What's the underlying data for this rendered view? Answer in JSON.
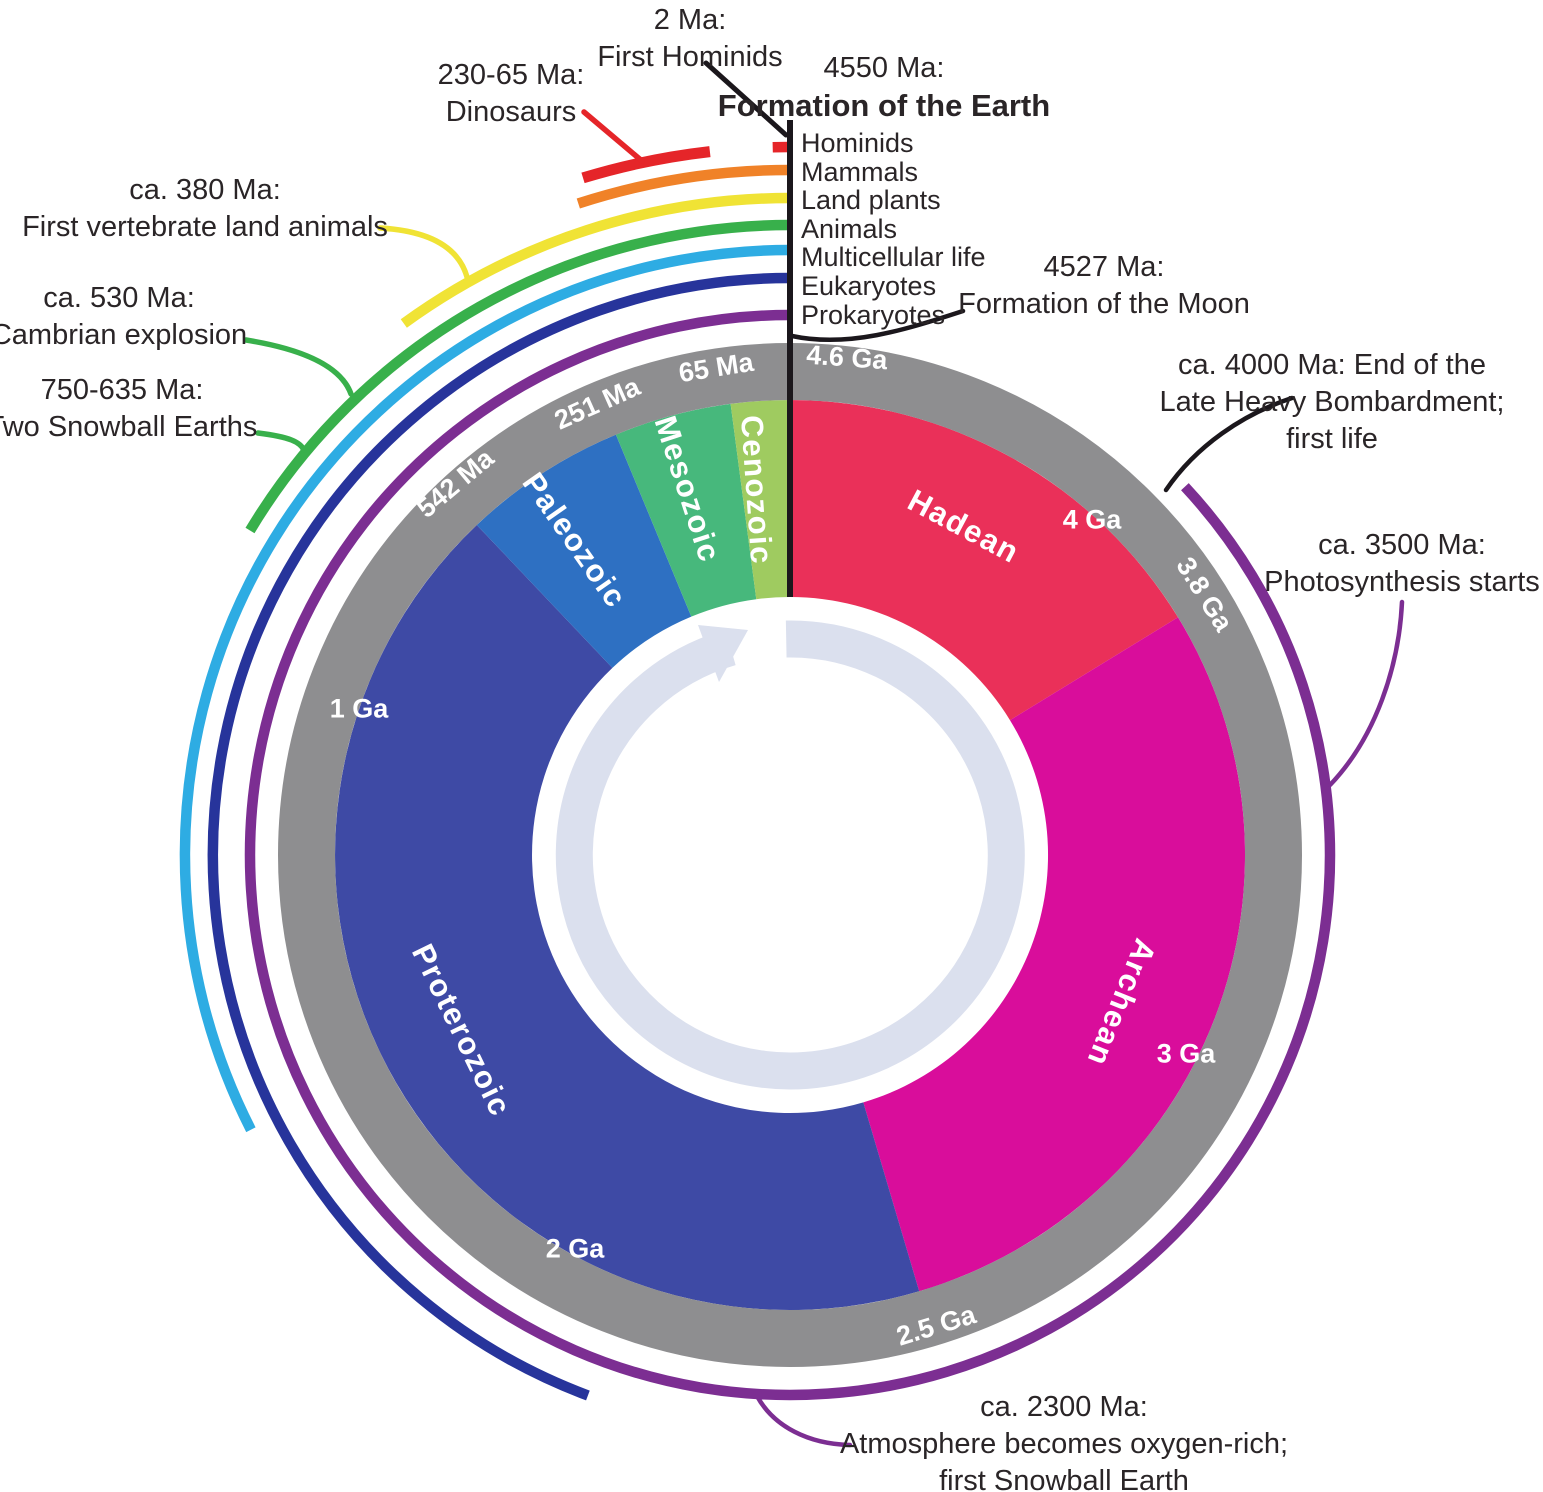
{
  "clock": {
    "description": "Geological clock: 4.6 billion years of Earth history shown as a circular dial",
    "ring_color": "#8e8e90",
    "arrow_color": "#dbe0ee",
    "line_color": "#1b171c",
    "text_color": "#2a2527",
    "total_span": "4.6 Ga",
    "eras": [
      {
        "name": "Hadean",
        "color": "#ea3059"
      },
      {
        "name": "Archean",
        "color": "#d90d9b"
      },
      {
        "name": "Proterozoic",
        "color": "#3e4aa5"
      },
      {
        "name": "Paleozoic",
        "color": "#2e70c2"
      },
      {
        "name": "Mesozoic",
        "color": "#47b87c"
      },
      {
        "name": "Cenozoic",
        "color": "#9fcb60"
      }
    ],
    "ring_labels": [
      "4.6 Ga",
      "65 Ma",
      "251 Ma",
      "542 Ma",
      "1 Ga",
      "2 Ga",
      "2.5 Ga",
      "3 Ga",
      "3.8 Ga",
      "4 Ga"
    ]
  },
  "life_arcs": [
    {
      "name": "Hominids",
      "color": "#e52529"
    },
    {
      "name": "Mammals",
      "color": "#f08228"
    },
    {
      "name": "Land plants",
      "color": "#f0e335"
    },
    {
      "name": "Animals",
      "color": "#38b04b"
    },
    {
      "name": "Multicellular life",
      "color": "#2eace3"
    },
    {
      "name": "Eukaryotes",
      "color": "#27349b"
    },
    {
      "name": "Prokaryotes",
      "color": "#7c2e92"
    }
  ],
  "dinosaur_arc": {
    "name": "Dinosaurs",
    "color": "#e52529"
  },
  "annotations": [
    {
      "id": "first-hominids",
      "lines": [
        "2 Ma:",
        "First Hominids"
      ]
    },
    {
      "id": "formation-earth",
      "lines": [
        "4550 Ma:",
        "Formation of the Earth"
      ]
    },
    {
      "id": "dinosaurs",
      "lines": [
        "230-65 Ma:",
        "Dinosaurs"
      ]
    },
    {
      "id": "first-vertebrates",
      "lines": [
        "ca. 380 Ma:",
        "First vertebrate land animals"
      ]
    },
    {
      "id": "cambrian-explosion",
      "lines": [
        "ca. 530 Ma:",
        "Cambrian explosion"
      ]
    },
    {
      "id": "snowball-earths",
      "lines": [
        "750-635 Ma:",
        "Two Snowball Earths"
      ]
    },
    {
      "id": "formation-moon",
      "lines": [
        "4527 Ma:",
        "Formation of the Moon"
      ]
    },
    {
      "id": "late-heavy-bombardment",
      "lines": [
        "ca. 4000 Ma: End of the",
        "Late Heavy Bombardment;",
        "first life"
      ]
    },
    {
      "id": "photosynthesis",
      "lines": [
        "ca. 3500 Ma:",
        "Photosynthesis starts"
      ]
    },
    {
      "id": "oxygen-atmosphere",
      "lines": [
        "ca. 2300 Ma:",
        "Atmosphere becomes oxygen-rich;",
        "first Snowball Earth"
      ]
    }
  ]
}
